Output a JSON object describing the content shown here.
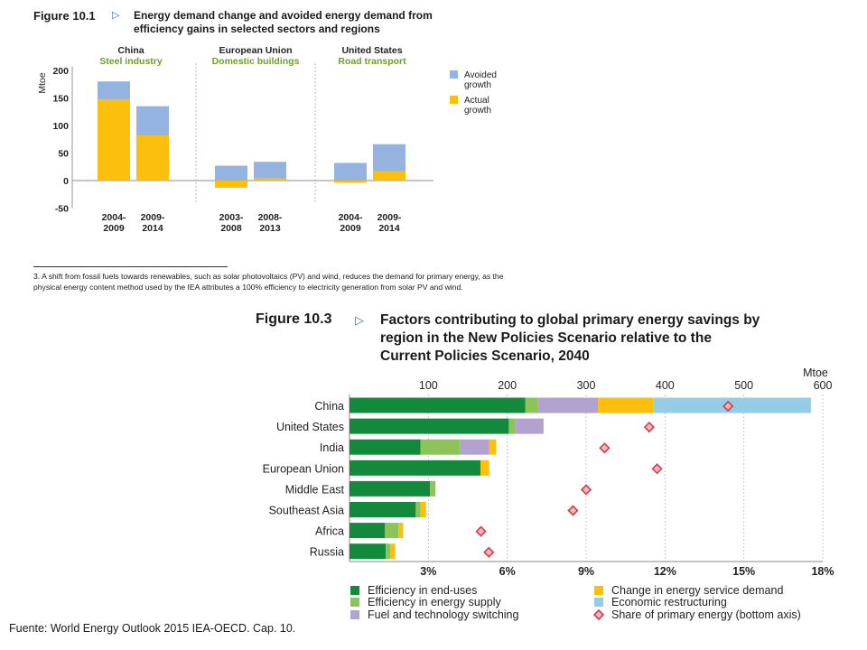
{
  "figure1": {
    "label": "Figure 10.1",
    "title_lines": [
      "Energy demand change and avoided energy demand from",
      "efficiency gains in selected sectors and regions"
    ],
    "footnote": "3. A shift from fossil fuels towards renewables, such as solar photovoltaics (PV) and wind, reduces the demand for primary energy, as the physical energy content method used by the IEA attributes a 100% efficiency to electricity generation from solar PV and wind."
  },
  "figure3": {
    "label": "Figure 10.3",
    "title_lines": [
      "Factors contributing to global primary energy savings by",
      "region in the New Policies Scenario relative to the",
      "Current Policies Scenario, 2040"
    ]
  },
  "source": "Fuente:  World Energy Outlook 2015  IEA-OECD. Cap. 10.",
  "colors": {
    "avoided": "#94b3e0",
    "actual": "#fcbf0d",
    "sector_label": "#6e9e32",
    "end_uses": "#138a3b",
    "supply": "#8dc45a",
    "switching": "#b3a2cf",
    "service": "#fcbf0d",
    "restructuring": "#96cde6",
    "share": "#d83b48",
    "arrow": "#3b6fb6"
  },
  "chart_data": [
    {
      "type": "bar",
      "stacked": true,
      "ylabel": "Mtoe",
      "ylim": [
        -50,
        200
      ],
      "yticks": [
        -50,
        0,
        50,
        100,
        150,
        200
      ],
      "legend": "right",
      "groups": [
        {
          "region": "China",
          "sector": "Steel industry",
          "categories": [
            [
              "2004-",
              "2009"
            ],
            [
              "2009-",
              "2014"
            ]
          ]
        },
        {
          "region": "European Union",
          "sector": "Domestic buildings",
          "categories": [
            [
              "2003-",
              "2008"
            ],
            [
              "2008-",
              "2013"
            ]
          ]
        },
        {
          "region": "United States",
          "sector": "Road transport",
          "categories": [
            [
              "2004-",
              "2009"
            ],
            [
              "2009-",
              "2014"
            ]
          ]
        }
      ],
      "series": [
        {
          "name": "Actual growth",
          "color_key": "actual",
          "values": [
            147,
            82,
            -13,
            4,
            -4,
            17
          ]
        },
        {
          "name": "Avoided growth",
          "color_key": "avoided",
          "values": [
            33,
            53,
            27,
            30,
            32,
            49
          ]
        }
      ],
      "legend_lines": [
        [
          "Avoided",
          "growth"
        ],
        [
          "Actual",
          "growth"
        ]
      ]
    },
    {
      "type": "bar",
      "orientation": "horizontal",
      "stacked": true,
      "unit_top": "Mtoe",
      "x_top_ticks": [
        100,
        200,
        300,
        400,
        500,
        600
      ],
      "x_top_range": [
        0,
        600
      ],
      "x_bottom_ticks": [
        "3%",
        "6%",
        "9%",
        "12%",
        "15%",
        "18%"
      ],
      "x_bottom_range": [
        0,
        18
      ],
      "legend": "bottom",
      "categories": [
        "China",
        "United States",
        "India",
        "European Union",
        "Middle East",
        "Southeast Asia",
        "Africa",
        "Russia"
      ],
      "series": [
        {
          "name": "Efficiency in end-uses",
          "color_key": "end_uses",
          "values": [
            223,
            202,
            90,
            166,
            102,
            84,
            45,
            46
          ]
        },
        {
          "name": "Efficiency in energy supply",
          "color_key": "supply",
          "values": [
            16,
            8,
            50,
            0,
            7,
            6,
            17,
            6
          ]
        },
        {
          "name": "Fuel and technology switching",
          "color_key": "switching",
          "values": [
            76,
            36,
            37,
            0,
            0,
            0,
            0,
            0
          ]
        },
        {
          "name": "Change in energy service demand",
          "color_key": "service",
          "values": [
            70,
            0,
            9,
            11,
            0,
            7,
            6,
            6
          ]
        },
        {
          "name": "Economic restructuring",
          "color_key": "restructuring",
          "values": [
            200,
            0,
            0,
            0,
            0,
            0,
            0,
            0
          ]
        }
      ],
      "share_of_primary_energy": {
        "name": "Share of primary energy (bottom axis)",
        "color_key": "share",
        "values": [
          14.4,
          11.4,
          9.7,
          11.7,
          9.0,
          8.5,
          5.0,
          5.3
        ]
      }
    }
  ]
}
